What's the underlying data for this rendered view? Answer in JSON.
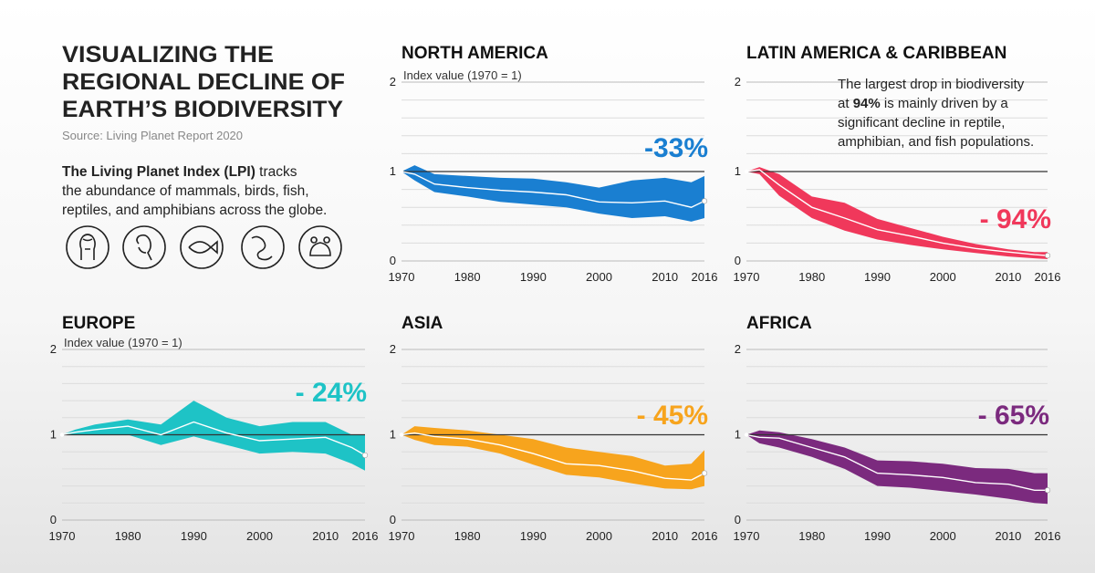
{
  "header": {
    "title": [
      "VISUALIZING THE",
      "REGIONAL DECLINE OF",
      "EARTH’S BIODIVERSITY"
    ],
    "source": "Source: Living Planet Report 2020",
    "description": [
      [
        "The Living Planet Index (LPI)",
        " tracks"
      ],
      [
        "the abundance of mammals, birds, fish,"
      ],
      [
        "reptiles, and amphibians across the globe."
      ]
    ]
  },
  "chart_data": [
    {
      "type": "band-line",
      "title": "NORTH AMERICA",
      "y_label": "Index value (1970 = 1)",
      "annotation": "-33%",
      "color": "#1a7fd1",
      "x": [
        1970,
        1972,
        1975,
        1980,
        1985,
        1990,
        1995,
        2000,
        2005,
        2010,
        2014,
        2016
      ],
      "values": [
        1,
        0.97,
        0.86,
        0.82,
        0.79,
        0.77,
        0.74,
        0.66,
        0.65,
        0.67,
        0.6,
        0.67
      ],
      "upper": [
        1,
        1.07,
        0.97,
        0.95,
        0.93,
        0.92,
        0.88,
        0.82,
        0.9,
        0.93,
        0.88,
        0.95
      ],
      "lower": [
        1,
        0.9,
        0.77,
        0.72,
        0.66,
        0.63,
        0.6,
        0.53,
        0.48,
        0.5,
        0.44,
        0.48
      ],
      "xlim": [
        1970,
        2016
      ],
      "xticks": [
        1970,
        1980,
        1990,
        2000,
        2010,
        2016
      ],
      "ylim": [
        0,
        2
      ],
      "yticks": [
        0,
        1,
        2
      ],
      "minor_yticks": [
        0.2,
        0.4,
        0.6,
        0.8,
        1.2,
        1.4,
        1.6,
        1.8
      ],
      "reference_y": 1,
      "grid": true
    },
    {
      "type": "band-line",
      "title": "LATIN AMERICA & CARIBBEAN",
      "annotation": "- 94%",
      "color": "#f0385b",
      "note": [
        [
          "The largest drop in biodiversity"
        ],
        [
          "at ",
          "94%",
          " is mainly driven by a"
        ],
        [
          "significant decline in reptile,"
        ],
        [
          "amphibian, and fish populations."
        ]
      ],
      "x": [
        1970,
        1972,
        1975,
        1980,
        1985,
        1990,
        1995,
        2000,
        2005,
        2010,
        2014,
        2016
      ],
      "values": [
        1,
        1.02,
        0.85,
        0.6,
        0.48,
        0.35,
        0.28,
        0.2,
        0.14,
        0.1,
        0.07,
        0.06
      ],
      "upper": [
        1,
        1.05,
        0.97,
        0.72,
        0.65,
        0.47,
        0.37,
        0.27,
        0.19,
        0.13,
        0.1,
        0.1
      ],
      "lower": [
        1,
        0.97,
        0.73,
        0.48,
        0.34,
        0.24,
        0.18,
        0.13,
        0.09,
        0.05,
        0.03,
        0.02
      ],
      "xlim": [
        1970,
        2016
      ],
      "xticks": [
        1970,
        1980,
        1990,
        2000,
        2010,
        2016
      ],
      "ylim": [
        0,
        2
      ],
      "yticks": [
        0,
        1,
        2
      ],
      "minor_yticks": [
        0.2,
        0.4,
        0.6,
        0.8,
        1.2,
        1.4,
        1.6,
        1.8
      ],
      "reference_y": 1,
      "grid": true
    },
    {
      "type": "band-line",
      "title": "EUROPE",
      "y_label": "Index value (1970 = 1)",
      "annotation": "- 24%",
      "color": "#1ec3c6",
      "x": [
        1970,
        1972,
        1975,
        1980,
        1985,
        1990,
        1995,
        2000,
        2005,
        2010,
        2014,
        2016
      ],
      "values": [
        1,
        1.03,
        1.06,
        1.1,
        1.0,
        1.15,
        1.02,
        0.93,
        0.95,
        0.97,
        0.85,
        0.76
      ],
      "upper": [
        1,
        1.06,
        1.12,
        1.18,
        1.12,
        1.4,
        1.2,
        1.1,
        1.15,
        1.15,
        1.0,
        1.0
      ],
      "lower": [
        1,
        1.0,
        1.0,
        1.0,
        0.88,
        0.98,
        0.88,
        0.78,
        0.8,
        0.78,
        0.66,
        0.58
      ],
      "xlim": [
        1970,
        2016
      ],
      "xticks": [
        1970,
        1980,
        1990,
        2000,
        2010,
        2016
      ],
      "ylim": [
        0,
        2
      ],
      "yticks": [
        0,
        1,
        2
      ],
      "minor_yticks": [
        0.2,
        0.4,
        0.6,
        0.8,
        1.2,
        1.4,
        1.6,
        1.8
      ],
      "reference_y": 1,
      "grid": true
    },
    {
      "type": "band-line",
      "title": "ASIA",
      "annotation": "- 45%",
      "color": "#f7a41d",
      "x": [
        1970,
        1972,
        1975,
        1980,
        1985,
        1990,
        1995,
        2000,
        2005,
        2010,
        2014,
        2016
      ],
      "values": [
        1,
        1.02,
        0.98,
        0.95,
        0.88,
        0.78,
        0.66,
        0.64,
        0.58,
        0.49,
        0.47,
        0.55
      ],
      "upper": [
        1,
        1.1,
        1.08,
        1.05,
        1.0,
        0.95,
        0.85,
        0.8,
        0.75,
        0.64,
        0.66,
        0.82
      ],
      "lower": [
        1,
        0.94,
        0.88,
        0.86,
        0.78,
        0.65,
        0.53,
        0.5,
        0.43,
        0.37,
        0.36,
        0.4
      ],
      "xlim": [
        1970,
        2016
      ],
      "xticks": [
        1970,
        1980,
        1990,
        2000,
        2010,
        2016
      ],
      "ylim": [
        0,
        2
      ],
      "yticks": [
        0,
        1,
        2
      ],
      "minor_yticks": [
        0.2,
        0.4,
        0.6,
        0.8,
        1.2,
        1.4,
        1.6,
        1.8
      ],
      "reference_y": 1,
      "grid": true
    },
    {
      "type": "band-line",
      "title": "AFRICA",
      "annotation": "- 65%",
      "color": "#7b2a7e",
      "x": [
        1970,
        1972,
        1975,
        1980,
        1985,
        1990,
        1995,
        2000,
        2005,
        2010,
        2014,
        2016
      ],
      "values": [
        1,
        0.97,
        0.96,
        0.85,
        0.74,
        0.55,
        0.53,
        0.5,
        0.44,
        0.42,
        0.35,
        0.35
      ],
      "upper": [
        1,
        1.05,
        1.03,
        0.95,
        0.85,
        0.7,
        0.69,
        0.66,
        0.61,
        0.6,
        0.55,
        0.55
      ],
      "lower": [
        1,
        0.9,
        0.85,
        0.74,
        0.6,
        0.4,
        0.38,
        0.34,
        0.3,
        0.25,
        0.2,
        0.19
      ],
      "xlim": [
        1970,
        2016
      ],
      "xticks": [
        1970,
        1980,
        1990,
        2000,
        2010,
        2016
      ],
      "ylim": [
        0,
        2
      ],
      "yticks": [
        0,
        1,
        2
      ],
      "minor_yticks": [
        0.2,
        0.4,
        0.6,
        0.8,
        1.2,
        1.4,
        1.6,
        1.8
      ],
      "reference_y": 1,
      "grid": true
    }
  ]
}
